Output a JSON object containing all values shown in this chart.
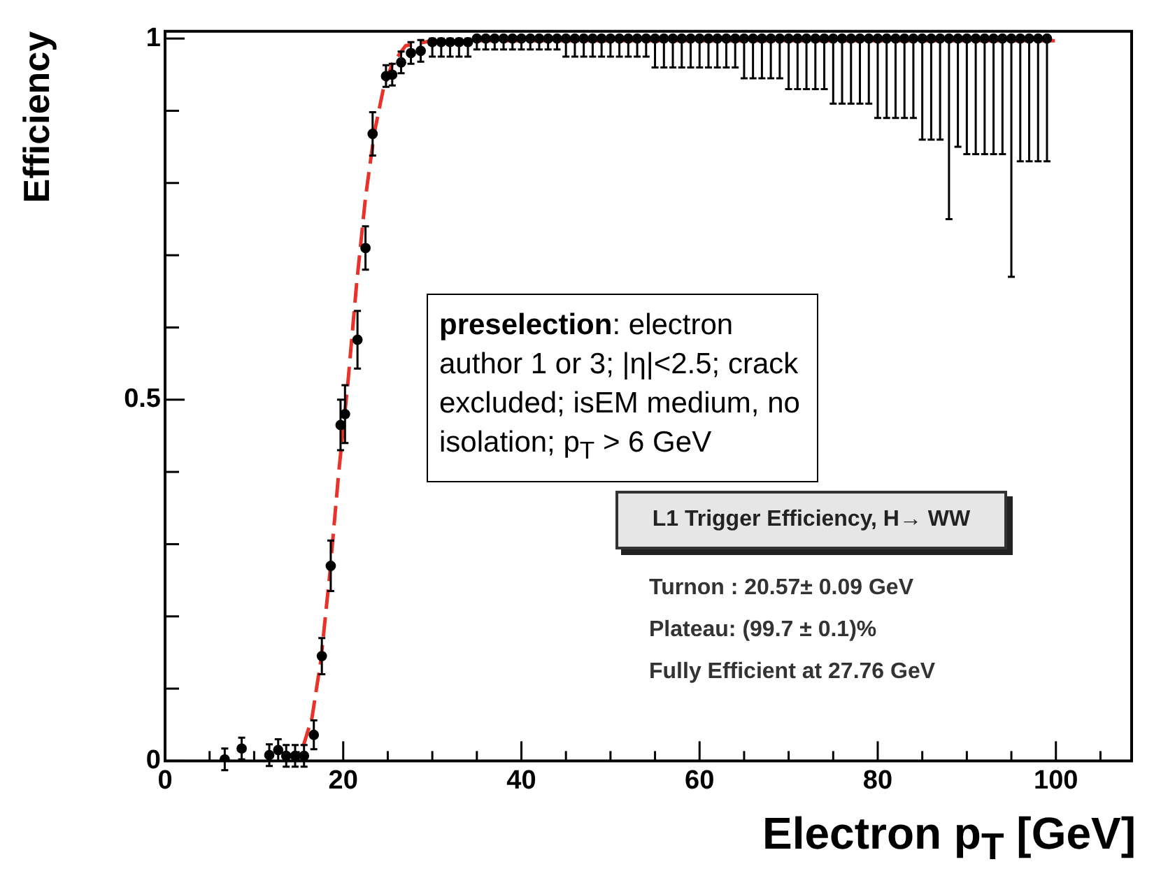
{
  "chart_data": {
    "type": "scatter",
    "xlabel": "Electron p$_{T}$ [GeV]",
    "ylabel": "Efficiency",
    "xlim": [
      0,
      108.5
    ],
    "ylim": [
      0,
      1.01
    ],
    "xticks": [
      0,
      {
        "value": 5,
        "label": null
      },
      {
        "value": 10,
        "label": null
      },
      {
        "value": 15,
        "label": null
      },
      20,
      {
        "value": 25,
        "label": null
      },
      {
        "value": 30,
        "label": null
      },
      {
        "value": 35,
        "label": null
      },
      40,
      {
        "value": 45,
        "label": null
      },
      {
        "value": 50,
        "label": null
      },
      {
        "value": 55,
        "label": null
      },
      60,
      {
        "value": 65,
        "label": null
      },
      {
        "value": 70,
        "label": null
      },
      {
        "value": 75,
        "label": null
      },
      80,
      {
        "value": 85,
        "label": null
      },
      {
        "value": 90,
        "label": null
      },
      {
        "value": 95,
        "label": null
      },
      100,
      {
        "value": 105,
        "label": null
      }
    ],
    "yticks": [
      0,
      {
        "value": 0.1,
        "label": null
      },
      {
        "value": 0.2,
        "label": null
      },
      {
        "value": 0.3,
        "label": null
      },
      {
        "value": 0.4,
        "label": null
      },
      0.5,
      {
        "value": 0.6,
        "label": null
      },
      {
        "value": 0.7,
        "label": null
      },
      {
        "value": 0.8,
        "label": null
      },
      {
        "value": 0.9,
        "label": null
      },
      1
    ],
    "grid": false,
    "legend": false,
    "series": [
      {
        "type": "scatter",
        "color": "#000000",
        "marker": "circle",
        "x": [
          6.7,
          8.6,
          11.7,
          12.7,
          13.6,
          14.6,
          15.6,
          16.7,
          17.6,
          18.6,
          19.7,
          20.2,
          21.6,
          22.5,
          23.3,
          24.8,
          25.5,
          26.5,
          27.6,
          28.7,
          30,
          31,
          32,
          33,
          34,
          35,
          36,
          37,
          38,
          39,
          40,
          41,
          42,
          43,
          44,
          45,
          46,
          47,
          48,
          49,
          50,
          51,
          52,
          53,
          54,
          55,
          56,
          57,
          58,
          59,
          60,
          61,
          62,
          63,
          64,
          65,
          66,
          67,
          68,
          69,
          70,
          71,
          72,
          73,
          74,
          75,
          76,
          77,
          78,
          79,
          80,
          81,
          82,
          83,
          84,
          85,
          86,
          87,
          88,
          89,
          90,
          91,
          92,
          93,
          94,
          95,
          96,
          97,
          98,
          99
        ],
        "values": [
          0.002,
          0.017,
          0.008,
          0.015,
          0.007,
          0.007,
          0.007,
          0.036,
          0.145,
          0.27,
          0.465,
          0.48,
          0.583,
          0.71,
          0.868,
          0.948,
          0.95,
          0.967,
          0.98,
          0.983,
          0.995,
          0.995,
          0.995,
          0.995,
          0.995,
          1,
          1,
          1,
          1,
          1,
          1,
          1,
          1,
          1,
          1,
          1,
          1,
          1,
          1,
          1,
          1,
          1,
          1,
          1,
          1,
          1,
          1,
          1,
          1,
          1,
          1,
          1,
          1,
          1,
          1,
          1,
          1,
          1,
          1,
          1,
          1,
          1,
          1,
          1,
          1,
          1,
          1,
          1,
          1,
          1,
          1,
          1,
          1,
          1,
          1,
          1,
          1,
          1,
          1,
          1,
          1,
          1,
          1,
          1,
          1,
          1,
          1,
          1,
          1,
          1
        ],
        "errors": [
          0.015,
          0.015,
          0.015,
          0.015,
          0.015,
          0.015,
          0.015,
          0.02,
          0.025,
          0.035,
          0.035,
          0.04,
          0.04,
          0.03,
          0.03,
          0.015,
          0.015,
          0.015,
          0.015,
          0.015,
          [
            0.975,
            1
          ],
          [
            0.975,
            1
          ],
          [
            0.975,
            1
          ],
          [
            0.975,
            1
          ],
          [
            0.975,
            1
          ],
          [
            0.985,
            1
          ],
          [
            0.985,
            1
          ],
          [
            0.985,
            1
          ],
          [
            0.985,
            1
          ],
          [
            0.985,
            1
          ],
          [
            0.985,
            1
          ],
          [
            0.985,
            1
          ],
          [
            0.985,
            1
          ],
          [
            0.985,
            1
          ],
          [
            0.985,
            1
          ],
          [
            0.975,
            1
          ],
          [
            0.975,
            1
          ],
          [
            0.975,
            1
          ],
          [
            0.975,
            1
          ],
          [
            0.975,
            1
          ],
          [
            0.975,
            1
          ],
          [
            0.975,
            1
          ],
          [
            0.975,
            1
          ],
          [
            0.975,
            1
          ],
          [
            0.975,
            1
          ],
          [
            0.96,
            1
          ],
          [
            0.96,
            1
          ],
          [
            0.96,
            1
          ],
          [
            0.96,
            1
          ],
          [
            0.96,
            1
          ],
          [
            0.96,
            1
          ],
          [
            0.96,
            1
          ],
          [
            0.96,
            1
          ],
          [
            0.96,
            1
          ],
          [
            0.96,
            1
          ],
          [
            0.945,
            1
          ],
          [
            0.945,
            1
          ],
          [
            0.945,
            1
          ],
          [
            0.945,
            1
          ],
          [
            0.945,
            1
          ],
          [
            0.93,
            1
          ],
          [
            0.93,
            1
          ],
          [
            0.93,
            1
          ],
          [
            0.93,
            1
          ],
          [
            0.93,
            1
          ],
          [
            0.91,
            1
          ],
          [
            0.91,
            1
          ],
          [
            0.91,
            1
          ],
          [
            0.91,
            1
          ],
          [
            0.91,
            1
          ],
          [
            0.89,
            1
          ],
          [
            0.89,
            1
          ],
          [
            0.89,
            1
          ],
          [
            0.89,
            1
          ],
          [
            0.89,
            1
          ],
          [
            0.86,
            1
          ],
          [
            0.86,
            1
          ],
          [
            0.86,
            1
          ],
          [
            0.75,
            1
          ],
          [
            0.85,
            1
          ],
          [
            0.84,
            1
          ],
          [
            0.84,
            1
          ],
          [
            0.84,
            1
          ],
          [
            0.84,
            1
          ],
          [
            0.84,
            1
          ],
          [
            0.67,
            1
          ],
          [
            0.83,
            1
          ],
          [
            0.83,
            1
          ],
          [
            0.83,
            1
          ],
          [
            0.83,
            1
          ]
        ]
      },
      {
        "type": "line",
        "color": "#e8322a",
        "marker": "none",
        "line_style": "dashed",
        "x": [
          15.5,
          16.5,
          17.5,
          18.5,
          19.5,
          20.5,
          21.5,
          22.5,
          23.5,
          24.5,
          25.5,
          27,
          30,
          100
        ],
        "values": [
          0.02,
          0.06,
          0.14,
          0.26,
          0.4,
          0.52,
          0.66,
          0.78,
          0.87,
          0.93,
          0.965,
          0.99,
          0.997,
          0.997
        ]
      }
    ],
    "annotations": [
      "preselection: electron author 1 or 3; |η|<2.5; crack excluded; isEM medium, no isolation; p$_{T}$ > 6 GeV",
      "L1 Trigger Efficiency, H→ WW",
      "Turnon : 20.57± 0.09 GeV",
      "Plateau: (99.7 ± 0.1)%",
      "Fully Efficient at 27.76 GeV"
    ]
  }
}
